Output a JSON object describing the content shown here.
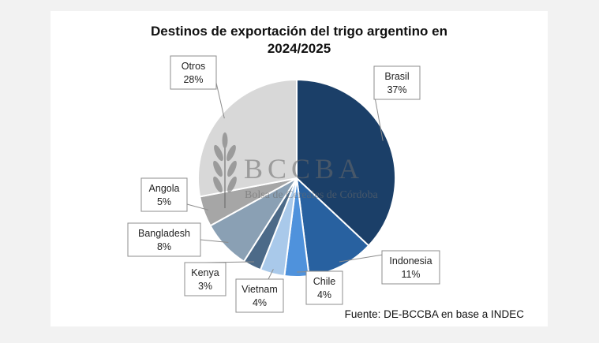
{
  "chart_data": {
    "type": "pie",
    "title_line1": "Destinos de exportación del trigo argentino en",
    "title_line2": "2024/2025",
    "slices": [
      {
        "label": "Brasil",
        "value": 37,
        "display": "37%",
        "color": "#1b3f68"
      },
      {
        "label": "Indonesia",
        "value": 11,
        "display": "11%",
        "color": "#2861a0"
      },
      {
        "label": "Chile",
        "value": 4,
        "display": "4%",
        "color": "#4f92dc"
      },
      {
        "label": "Vietnam",
        "value": 4,
        "display": "4%",
        "color": "#a9c9ea"
      },
      {
        "label": "Kenya",
        "value": 3,
        "display": "3%",
        "color": "#4c6a88"
      },
      {
        "label": "Bangladesh",
        "value": 8,
        "display": "8%",
        "color": "#8aa0b4"
      },
      {
        "label": "Angola",
        "value": 5,
        "display": "5%",
        "color": "#a6a6a6"
      },
      {
        "label": "Otros",
        "value": 28,
        "display": "28%",
        "color": "#d8d8d8"
      }
    ],
    "legend": "none"
  },
  "watermark": {
    "brand": "BCCBA",
    "subtitle": "Bolsa de Cereales de Córdoba"
  },
  "source_note": "Fuente: DE-BCCBA en base a INDEC"
}
